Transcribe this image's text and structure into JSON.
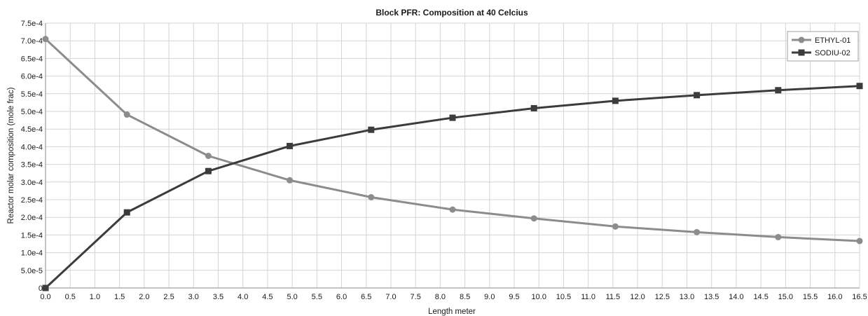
{
  "chart_data": {
    "type": "line",
    "title": "Block PFR: Composition at 40 Celcius",
    "xlabel": "Length meter",
    "ylabel": "Reactor molar composition (mole frac)",
    "xlim": [
      0,
      16.5
    ],
    "ylim": [
      0,
      0.00075
    ],
    "x_ticks": [
      "0.0",
      "0.5",
      "1.0",
      "1.5",
      "2.0",
      "2.5",
      "3.0",
      "3.5",
      "4.0",
      "4.5",
      "5.0",
      "5.5",
      "6.0",
      "6.5",
      "7.0",
      "7.5",
      "8.0",
      "8.5",
      "9.0",
      "9.5",
      "10.0",
      "10.5",
      "11.0",
      "11.5",
      "12.0",
      "12.5",
      "13.0",
      "13.5",
      "14.0",
      "14.5",
      "15.0",
      "15.5",
      "16.0",
      "16.5"
    ],
    "y_ticks": [
      "0",
      "5.0e-5",
      "1.0e-4",
      "1.5e-4",
      "2.0e-4",
      "2.5e-4",
      "3.0e-4",
      "3.5e-4",
      "4.0e-4",
      "4.5e-4",
      "5.0e-4",
      "5.5e-4",
      "6.0e-4",
      "6.5e-4",
      "7.0e-4",
      "7.5e-4"
    ],
    "grid": true,
    "legend_position": "top-right",
    "x": [
      0,
      1.65,
      3.3,
      4.95,
      6.6,
      8.25,
      9.9,
      11.55,
      13.2,
      14.85,
      16.5
    ],
    "series": [
      {
        "name": "ETHYL-01",
        "marker": "circle",
        "color": "#8c8c8c",
        "values": [
          0.000705,
          0.000491,
          0.000374,
          0.000305,
          0.000257,
          0.000222,
          0.000197,
          0.000174,
          0.000158,
          0.000144,
          0.000133
        ]
      },
      {
        "name": "SODIU-02",
        "marker": "square",
        "color": "#3c3c3c",
        "values": [
          0,
          0.000214,
          0.000331,
          0.000402,
          0.000448,
          0.000482,
          0.000509,
          0.00053,
          0.000546,
          0.00056,
          0.000572
        ]
      }
    ]
  }
}
